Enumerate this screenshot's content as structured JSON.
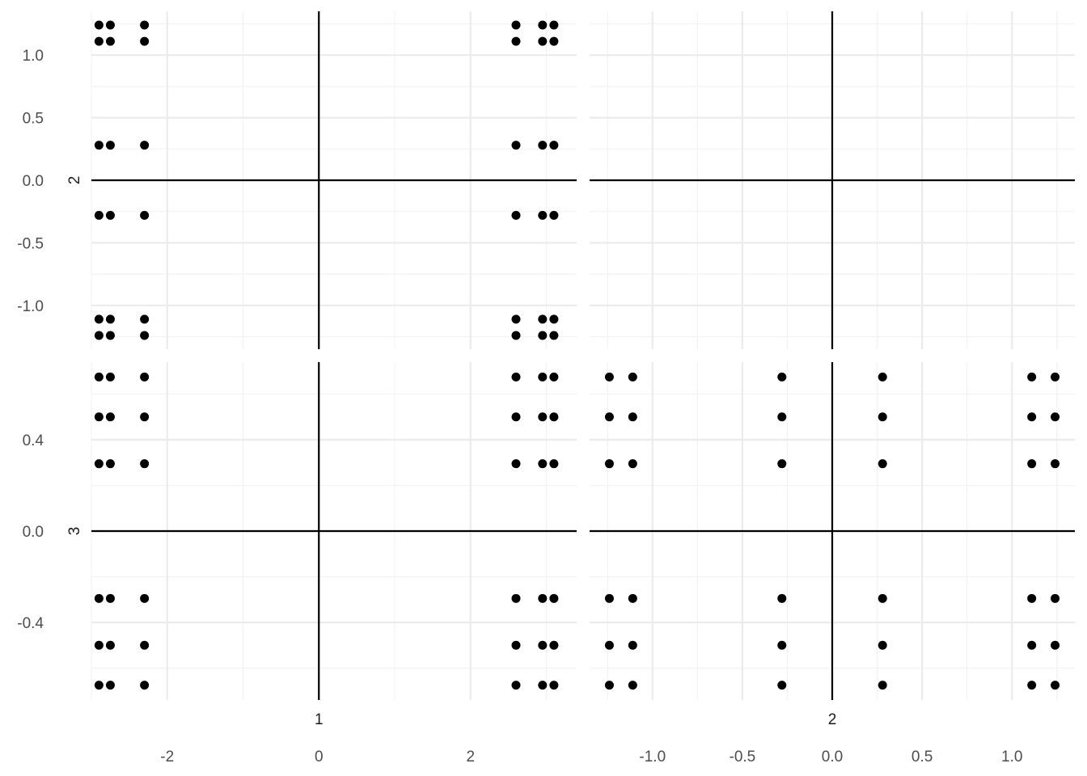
{
  "chart_data": {
    "type": "scatter",
    "layout": "pairs-matrix",
    "grid": true,
    "point_color": "#000000",
    "grid_major_color": "#ebebeb",
    "grid_minor_color": "#f2f2f2",
    "axis_line_color": "#000000",
    "variables": [
      "1",
      "2",
      "3"
    ],
    "row_labels": [
      "2",
      "3"
    ],
    "col_labels": [
      "1",
      "2"
    ],
    "axes": {
      "1": {
        "ticks": [
          -2,
          0,
          2
        ],
        "tick_labels": [
          "-2",
          "0",
          "2"
        ],
        "range": [
          -3.0,
          3.4
        ]
      },
      "2": {
        "ticks": [
          -1.0,
          -0.5,
          0.0,
          0.5,
          1.0
        ],
        "tick_labels": [
          "-1.0",
          "-0.5",
          "0.0",
          "0.5",
          "1.0"
        ],
        "range": [
          -1.35,
          1.35
        ]
      },
      "3": {
        "ticks": [
          -0.4,
          0.0,
          0.4
        ],
        "tick_labels": [
          "-0.4",
          "0.0",
          "0.4"
        ],
        "range": [
          -0.74,
          0.74
        ]
      }
    },
    "values": {
      "1": [
        -2.9,
        -2.75,
        -2.3,
        2.6,
        2.95,
        3.1
      ],
      "2": [
        -1.24,
        -1.11,
        -0.28,
        0.28,
        1.11,
        1.24
      ],
      "3": [
        -0.675,
        -0.5,
        -0.295,
        0.295,
        0.5,
        0.675
      ]
    },
    "panels": [
      {
        "row": "2",
        "col": "1",
        "x_var": "1",
        "y_var": "2",
        "show_points": true
      },
      {
        "row": "2",
        "col": "2",
        "x_var": "2",
        "y_var": "2",
        "show_points": false
      },
      {
        "row": "3",
        "col": "1",
        "x_var": "1",
        "y_var": "3",
        "show_points": true
      },
      {
        "row": "3",
        "col": "2",
        "x_var": "2",
        "y_var": "3",
        "show_points": true
      }
    ]
  }
}
